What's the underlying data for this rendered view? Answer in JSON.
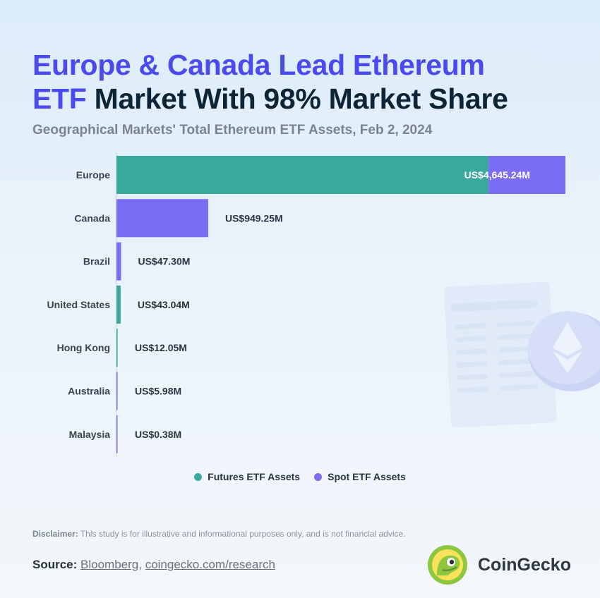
{
  "title": {
    "part1": "Europe & Canada Lead Ethereum",
    "part2": "ETF",
    "part3": "Market With 98% Market Share"
  },
  "subtitle": "Geographical Markets' Total Ethereum ETF Assets, Feb 2, 2024",
  "colors": {
    "futures": "#3aa99c",
    "spot": "#7b6cf4",
    "title_highlight": "#4a4af0"
  },
  "chart_data": {
    "type": "bar",
    "orientation": "horizontal",
    "stacked": true,
    "categories": [
      "Europe",
      "Canada",
      "Brazil",
      "United States",
      "Hong Kong",
      "Australia",
      "Malaysia"
    ],
    "series": [
      {
        "name": "Futures ETF Assets",
        "values": [
          3850.0,
          0,
          0,
          43.04,
          12.05,
          0,
          0
        ]
      },
      {
        "name": "Spot ETF Assets",
        "values": [
          795.24,
          949.25,
          47.3,
          0,
          0,
          5.98,
          0.38
        ]
      }
    ],
    "labels": [
      "US$4,645.24M",
      "US$949.25M",
      "US$47.30M",
      "US$43.04M",
      "US$12.05M",
      "US$5.98M",
      "US$0.38M"
    ],
    "totals": [
      4645.24,
      949.25,
      47.3,
      43.04,
      12.05,
      5.98,
      0.38
    ],
    "xlim": [
      0,
      4645.24
    ],
    "legend_position": "bottom"
  },
  "legend": {
    "futures": "Futures ETF Assets",
    "spot": "Spot ETF Assets"
  },
  "disclaimer": {
    "label": "Disclaimer:",
    "text": " This study is for illustrative and informational purposes only, and is not financial advice."
  },
  "source": {
    "label": "Source:",
    "link1": "Bloomberg",
    "sep": ", ",
    "link2": "coingecko.com/research"
  },
  "brand": {
    "name": "CoinGecko",
    "icon": "gecko-logo-icon"
  },
  "decoration": {
    "icon": "ethereum-coin-icon"
  }
}
